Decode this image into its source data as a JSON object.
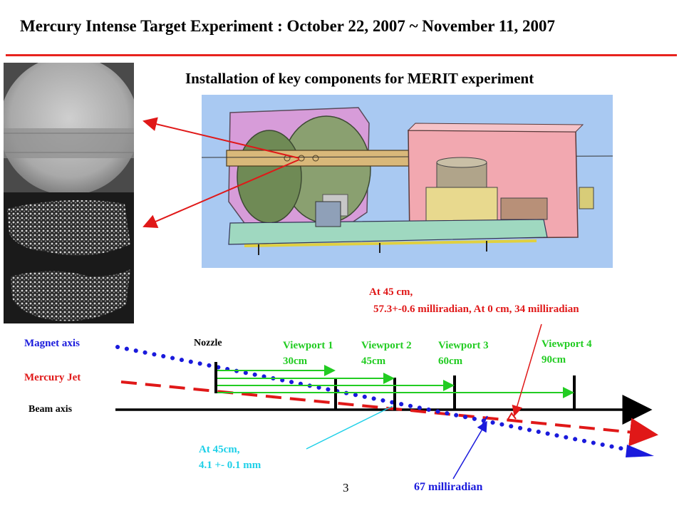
{
  "header": {
    "title": "Mercury Intense Target Experiment : October 22, 2007 ~ November 11, 2007",
    "subtitle": "Installation of key components for MERIT experiment"
  },
  "diagram": {
    "axes": {
      "magnet_axis": "Magnet axis",
      "mercury_jet": "Mercury Jet",
      "beam_axis": "Beam axis",
      "nozzle": "Nozzle"
    },
    "viewports": [
      {
        "name": "Viewport 1",
        "distance": "30cm"
      },
      {
        "name": "Viewport 2",
        "distance": "45cm"
      },
      {
        "name": "Viewport 3",
        "distance": "60cm"
      },
      {
        "name": "Viewport 4",
        "distance": "90cm"
      }
    ],
    "annotations": {
      "angle_line1": "At 45 cm,",
      "angle_line2": "57.3+-0.6 milliradian, At 0 cm, 34 milliradian",
      "offset_line1": "At 45cm,",
      "offset_line2": "4.1 +- 0.1 mm",
      "magnet_angle": "67 milliradian"
    },
    "colors": {
      "magnet_axis": "#1a1adc",
      "mercury_jet": "#e01818",
      "viewport_markers": "#22cc22",
      "offset_callout": "#1ed0e8",
      "beam_axis": "#000000"
    }
  },
  "footer": {
    "page_number": "3"
  }
}
